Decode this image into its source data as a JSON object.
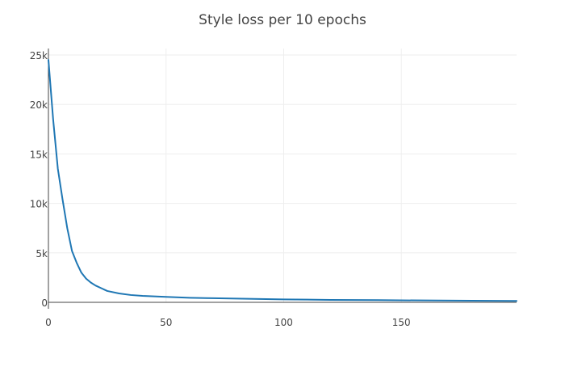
{
  "chart_data": {
    "type": "line",
    "title": "Style loss per 10 epochs",
    "xlabel": "",
    "ylabel": "",
    "xlim": [
      0,
      199
    ],
    "ylim": [
      0,
      26000
    ],
    "x_ticks": [
      0,
      50,
      100,
      150
    ],
    "x_tick_labels": [
      "0",
      "50",
      "100",
      "150"
    ],
    "y_ticks": [
      0,
      5000,
      10000,
      15000,
      20000,
      25000
    ],
    "y_tick_labels": [
      "0",
      "5k",
      "10k",
      "15k",
      "20k",
      "25k"
    ],
    "grid": true,
    "legend": "none",
    "series": [
      {
        "color": "#1f77b4",
        "x": [
          0,
          2,
          4,
          6,
          8,
          10,
          12,
          14,
          16,
          18,
          20,
          25,
          30,
          35,
          40,
          50,
          60,
          70,
          80,
          90,
          100,
          120,
          140,
          160,
          180,
          199
        ],
        "y": [
          24500,
          18500,
          13500,
          10400,
          7500,
          5200,
          4000,
          3000,
          2400,
          2000,
          1700,
          1150,
          900,
          740,
          650,
          550,
          460,
          420,
          380,
          340,
          300,
          250,
          220,
          190,
          160,
          140
        ]
      }
    ]
  }
}
